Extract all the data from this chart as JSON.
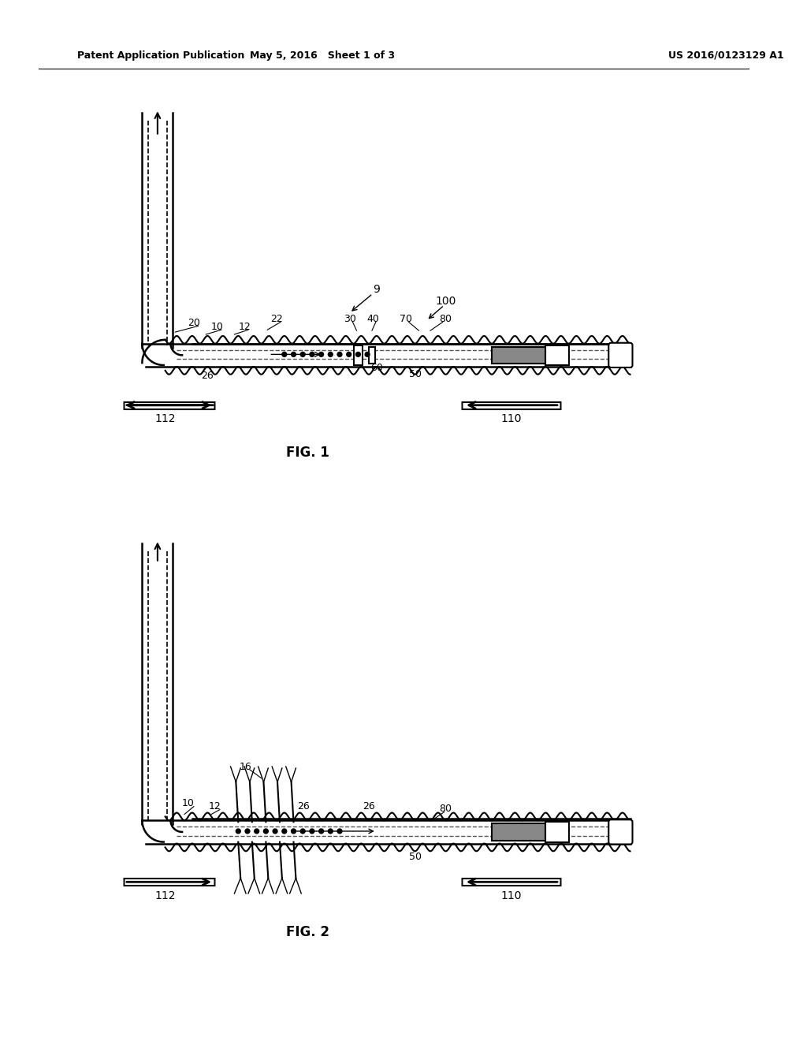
{
  "title_left": "Patent Application Publication",
  "title_mid": "May 5, 2016   Sheet 1 of 3",
  "title_right": "US 2016/0123129 A1",
  "fig1_label": "FIG. 1",
  "fig2_label": "FIG. 2",
  "bg_color": "#ffffff",
  "line_color": "#000000",
  "labels_fig1": [
    "9",
    "100",
    "20",
    "10",
    "12",
    "22",
    "30",
    "40",
    "70",
    "80",
    "26",
    "60",
    "50",
    "112",
    "110"
  ],
  "labels_fig2": [
    "10",
    "12",
    "16",
    "26",
    "26",
    "80",
    "50",
    "112",
    "110"
  ]
}
